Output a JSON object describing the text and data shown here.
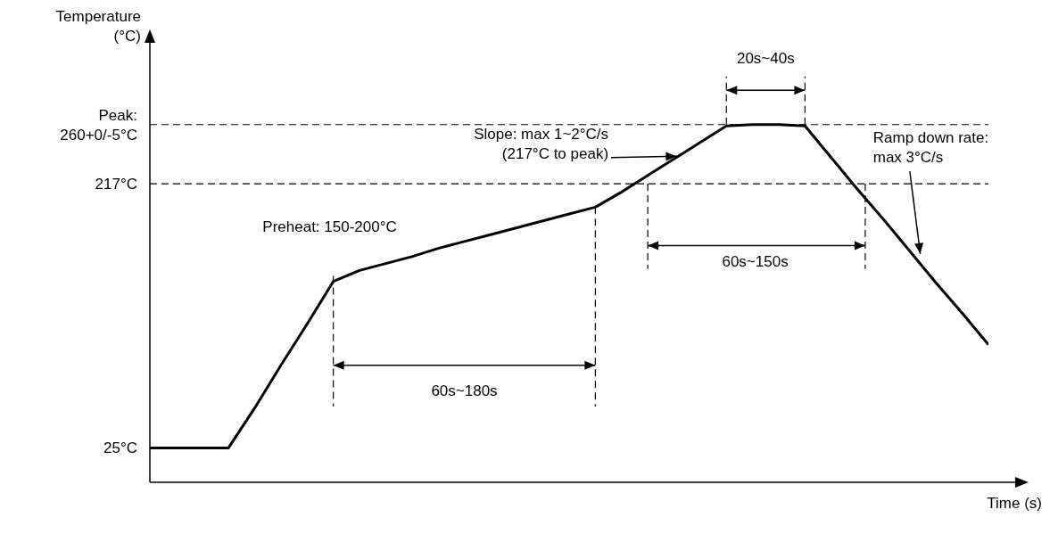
{
  "chart_data": {
    "type": "line",
    "ylabel": "Temperature (°C)",
    "xlabel": "Time (s)",
    "categories": [
      null,
      null,
      null,
      null,
      null,
      null,
      null,
      null,
      null,
      null,
      null,
      null,
      null,
      null,
      null,
      null,
      null,
      null,
      null,
      null,
      null,
      null,
      null,
      null,
      null,
      null,
      null,
      null,
      null,
      null,
      null,
      null,
      null
    ],
    "series": [
      {
        "color": "#000000",
        "values": [
          25,
          25,
          25,
          25,
          54,
          85,
          115,
          146,
          154,
          159,
          164,
          170,
          175,
          180,
          185,
          190,
          195,
          200,
          211,
          223,
          235,
          247,
          259,
          260,
          260,
          259,
          236,
          213,
          191,
          168,
          145,
          123,
          100
        ]
      }
    ],
    "ylim": [
      0,
      300
    ],
    "yticks": [
      {
        "value": 25,
        "label": "25°C"
      },
      {
        "value": 217,
        "label": "217°C"
      },
      {
        "value": 260,
        "label": "Peak: 260+0/-5°C"
      }
    ],
    "ref_lines": [
      {
        "axis": "y",
        "value": 260,
        "line_style": "dashed"
      },
      {
        "axis": "y",
        "value": 217,
        "line_style": "dashed"
      }
    ],
    "annotations": [
      "Preheat: 150-200°C",
      "Slope: max 1~2°C/s (217°C to peak)",
      "Ramp down rate: max 3°C/s",
      "20s~40s",
      "60s~150s",
      "60s~180s"
    ],
    "legend": false,
    "grid": false,
    "marker": "none",
    "line_style": "solid"
  }
}
